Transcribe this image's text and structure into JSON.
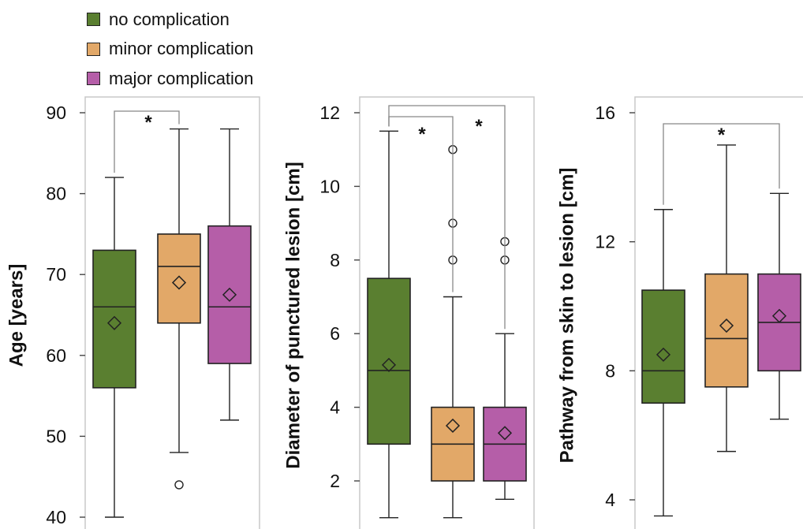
{
  "legend": [
    {
      "label": "no complication",
      "color": "#5a7f30"
    },
    {
      "label": "minor complication",
      "color": "#e2a868"
    },
    {
      "label": "major complication",
      "color": "#b55ea8"
    }
  ],
  "chart_data": [
    {
      "type": "box",
      "ylabel": "Age [years]",
      "ylim": [
        40,
        90
      ],
      "yticks": [
        40,
        50,
        60,
        70,
        80,
        90
      ],
      "groups": [
        {
          "name": "no complication",
          "min": 40,
          "q1": 56,
          "median": 66,
          "q3": 73,
          "max": 82,
          "mean": 64,
          "outliers": []
        },
        {
          "name": "minor complication",
          "min": 48,
          "q1": 64,
          "median": 71,
          "q3": 75,
          "max": 88,
          "mean": 69,
          "outliers": [
            44
          ]
        },
        {
          "name": "major complication",
          "min": 52,
          "q1": 59,
          "median": 66,
          "q3": 76,
          "max": 88,
          "mean": 67.5,
          "outliers": []
        }
      ],
      "significance": [
        {
          "from": 0,
          "to": 1,
          "label": "*"
        }
      ]
    },
    {
      "type": "box",
      "ylabel": "Diameter of punctured lesion [cm]",
      "ylim": [
        1,
        12
      ],
      "yticks": [
        2,
        4,
        6,
        8,
        10,
        12
      ],
      "groups": [
        {
          "name": "no complication",
          "min": 1,
          "q1": 3,
          "median": 5,
          "q3": 7.5,
          "max": 11.5,
          "mean": 5.15,
          "outliers": []
        },
        {
          "name": "minor complication",
          "min": 1,
          "q1": 2,
          "median": 3,
          "q3": 4,
          "max": 7,
          "mean": 3.5,
          "outliers": [
            8,
            9,
            11
          ]
        },
        {
          "name": "major complication",
          "min": 1.5,
          "q1": 2,
          "median": 3,
          "q3": 4,
          "max": 6,
          "mean": 3.3,
          "outliers": [
            8,
            8.5
          ]
        }
      ],
      "significance": [
        {
          "from": 0,
          "to": 1,
          "label": "*"
        },
        {
          "from": 0,
          "to": 2,
          "label": "*"
        }
      ]
    },
    {
      "type": "box",
      "ylabel": "Pathway from skin to lesion [cm]",
      "ylim": [
        3.5,
        16
      ],
      "yticks": [
        4,
        8,
        12,
        16
      ],
      "groups": [
        {
          "name": "no complication",
          "min": 3.5,
          "q1": 7,
          "median": 8,
          "q3": 10.5,
          "max": 13,
          "mean": 8.5,
          "outliers": []
        },
        {
          "name": "minor complication",
          "min": 5.5,
          "q1": 7.5,
          "median": 9,
          "q3": 11,
          "max": 15,
          "mean": 9.4,
          "outliers": []
        },
        {
          "name": "major complication",
          "min": 6.5,
          "q1": 8,
          "median": 9.5,
          "q3": 11,
          "max": 13.5,
          "mean": 9.7,
          "outliers": []
        }
      ],
      "significance": [
        {
          "from": 0,
          "to": 2,
          "label": "*"
        }
      ]
    }
  ]
}
